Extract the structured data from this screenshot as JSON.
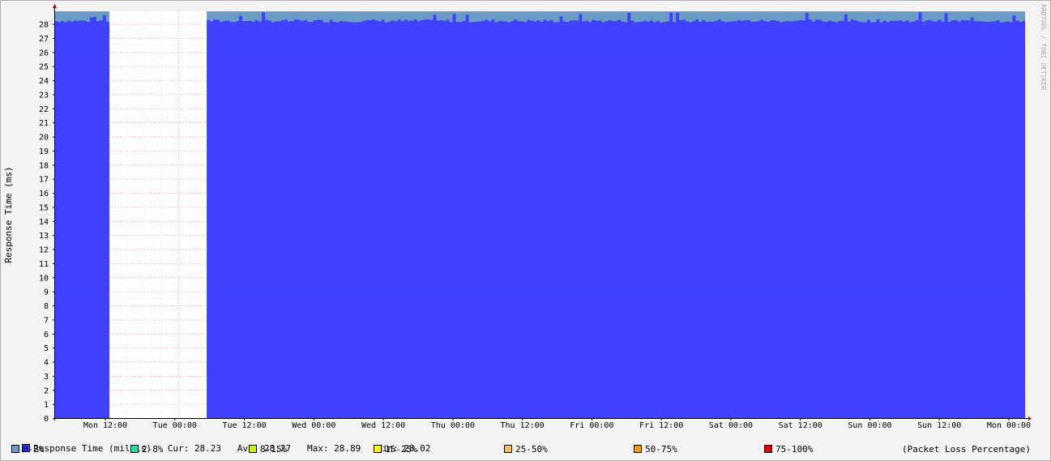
{
  "chart_data": {
    "type": "area",
    "ylabel": "Response Time (ms)",
    "ylim": [
      0,
      28.9
    ],
    "yticks": [
      0,
      1,
      2,
      3,
      4,
      5,
      6,
      7,
      8,
      9,
      10,
      11,
      12,
      13,
      14,
      15,
      16,
      17,
      18,
      19,
      20,
      21,
      22,
      23,
      24,
      25,
      26,
      27,
      28
    ],
    "xtick_labels": [
      "Mon 12:00",
      "Tue 00:00",
      "Tue 12:00",
      "Wed 00:00",
      "Wed 12:00",
      "Thu 00:00",
      "Thu 12:00",
      "Fri 00:00",
      "Fri 12:00",
      "Sat 00:00",
      "Sat 12:00",
      "Sun 00:00",
      "Sun 12:00",
      "Mon 00:00"
    ],
    "x_range_hours": [
      -9.5,
      158
    ],
    "gap_hours": [
      0,
      16.8
    ],
    "watermark": "RRDTOOL / TOBI OETIKER",
    "series": [
      {
        "name": "Response Time (millis)",
        "color": "#4040ff",
        "median": 28.22,
        "jitter_min": 28.02,
        "jitter_max": 28.89
      },
      {
        "name": "0-2%",
        "color": "#6a9bc8",
        "top": 28.9
      }
    ],
    "stats": {
      "cur": "28.23",
      "avg": "28.27",
      "max": "28.89",
      "min": "28.02"
    },
    "grid": true
  },
  "legend": {
    "series_line": "Response Time (millis)   Cur: 28.23   Avg: 28.27   Max: 28.89   Min: 28.02",
    "loss_title": "(Packet Loss Percentage)",
    "loss_items": [
      {
        "label": "0-2%",
        "color": "#6a9bc8"
      },
      {
        "label": "2-8%",
        "color": "#26e0a0"
      },
      {
        "label": "8-15%",
        "color": "#c8ff00"
      },
      {
        "label": "15-25%",
        "color": "#ffff00"
      },
      {
        "label": "25-50%",
        "color": "#ffc060"
      },
      {
        "label": "50-75%",
        "color": "#ff9900"
      },
      {
        "label": "75-100%",
        "color": "#e00000"
      }
    ],
    "series_color": "#4040ff"
  }
}
